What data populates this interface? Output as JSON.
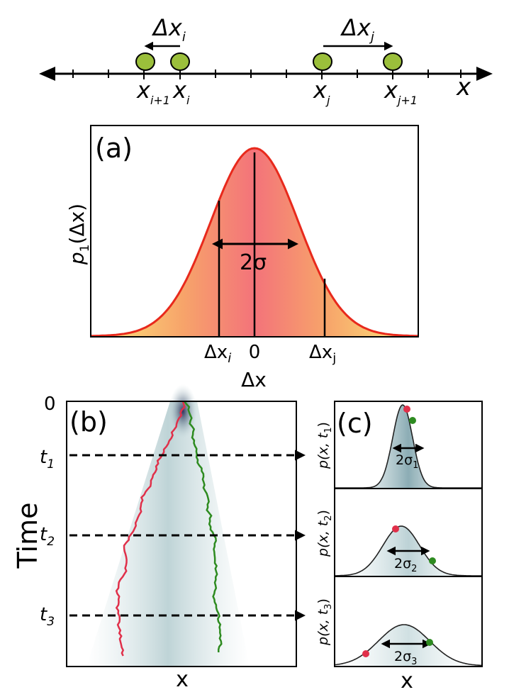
{
  "number_line": {
    "axis_label": "x",
    "delta_i": {
      "base": "Δx",
      "sub": "i"
    },
    "delta_j": {
      "base": "Δx",
      "sub": "j"
    },
    "pos_i1": {
      "base": "x",
      "sub": "i+1"
    },
    "pos_i": {
      "base": "x",
      "sub": "i"
    },
    "pos_j": {
      "base": "x",
      "sub": "j"
    },
    "pos_j1": {
      "base": "x",
      "sub": "j+1"
    },
    "particle_color": "#9bbf3b"
  },
  "panel_a": {
    "label": "(a)",
    "ylabel": {
      "pre": "p",
      "sub": "1",
      "post": "(Δx)"
    },
    "xlabel": "Δx",
    "width_label": "2σ",
    "tick_dxi": {
      "base": "Δx",
      "sub": "i"
    },
    "tick_zero": "0",
    "tick_dxj": {
      "base": "Δx",
      "sub": "j"
    },
    "curve_color": "#e8291c",
    "fill_center": "#f3737a",
    "fill_edge": "#fce97c"
  },
  "panel_b": {
    "label": "(b)",
    "ylabel": "Time",
    "xlabel": "x",
    "zero_label": "0",
    "t1": {
      "base": "t",
      "sub": "1"
    },
    "t2": {
      "base": "t",
      "sub": "2"
    },
    "t3": {
      "base": "t",
      "sub": "3"
    },
    "walker_red": "#e0304a",
    "walker_green": "#2e8b20"
  },
  "panel_c": {
    "label": "(c)",
    "xlabel": "x",
    "sub1": {
      "ylabel": {
        "pre": "p(x, t",
        "sub": "1",
        "post": ")"
      },
      "width": {
        "base": "2σ",
        "sub": "1"
      }
    },
    "sub2": {
      "ylabel": {
        "pre": "p(x, t",
        "sub": "2",
        "post": ")"
      },
      "width": {
        "base": "2σ",
        "sub": "2"
      }
    },
    "sub3": {
      "ylabel": {
        "pre": "p(x, t",
        "sub": "3",
        "post": ")"
      },
      "width": {
        "base": "2σ",
        "sub": "3"
      }
    }
  }
}
